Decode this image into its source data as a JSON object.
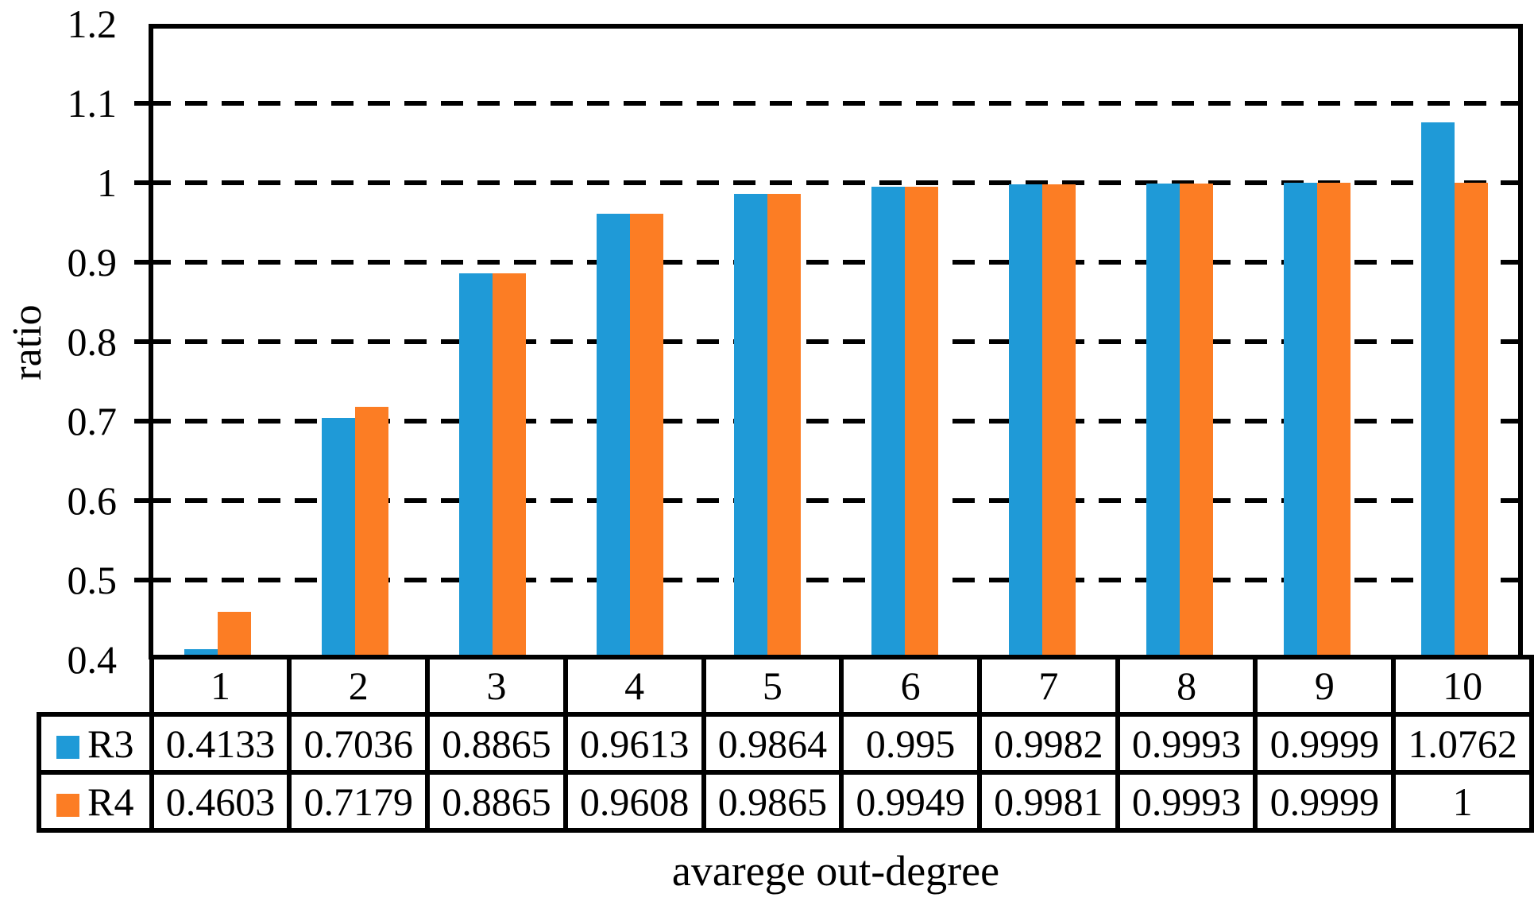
{
  "chart_data": {
    "type": "bar",
    "title": "",
    "xlabel": "avarege out-degree",
    "ylabel": "ratio",
    "categories": [
      "1",
      "2",
      "3",
      "4",
      "5",
      "6",
      "7",
      "8",
      "9",
      "10"
    ],
    "series": [
      {
        "name": "R3",
        "color": "#1F9AD7",
        "values": [
          0.4133,
          0.7036,
          0.8865,
          0.9613,
          0.9864,
          0.995,
          0.9982,
          0.9993,
          0.9999,
          1.0762
        ],
        "labels": [
          "0.4133",
          "0.7036",
          "0.8865",
          "0.9613",
          "0.9864",
          "0.995",
          "0.9982",
          "0.9993",
          "0.9999",
          "1.0762"
        ]
      },
      {
        "name": "R4",
        "color": "#FC7D24",
        "values": [
          0.4603,
          0.7179,
          0.8865,
          0.9608,
          0.9865,
          0.9949,
          0.9981,
          0.9993,
          0.9999,
          1
        ],
        "labels": [
          "0.4603",
          "0.7179",
          "0.8865",
          "0.9608",
          "0.9865",
          "0.9949",
          "0.9981",
          "0.9993",
          "0.9999",
          "1"
        ]
      }
    ],
    "ylim": [
      0.4,
      1.2
    ],
    "ytick_step": 0.1,
    "yticks": [
      "1.2",
      "1.1",
      "1",
      "0.9",
      "0.8",
      "0.7",
      "0.6",
      "0.5",
      "0.4"
    ],
    "grid": "horizontal-dashed",
    "grid_color": "#000000",
    "axis_color": "#000000",
    "legend_position": "table-left-column"
  }
}
